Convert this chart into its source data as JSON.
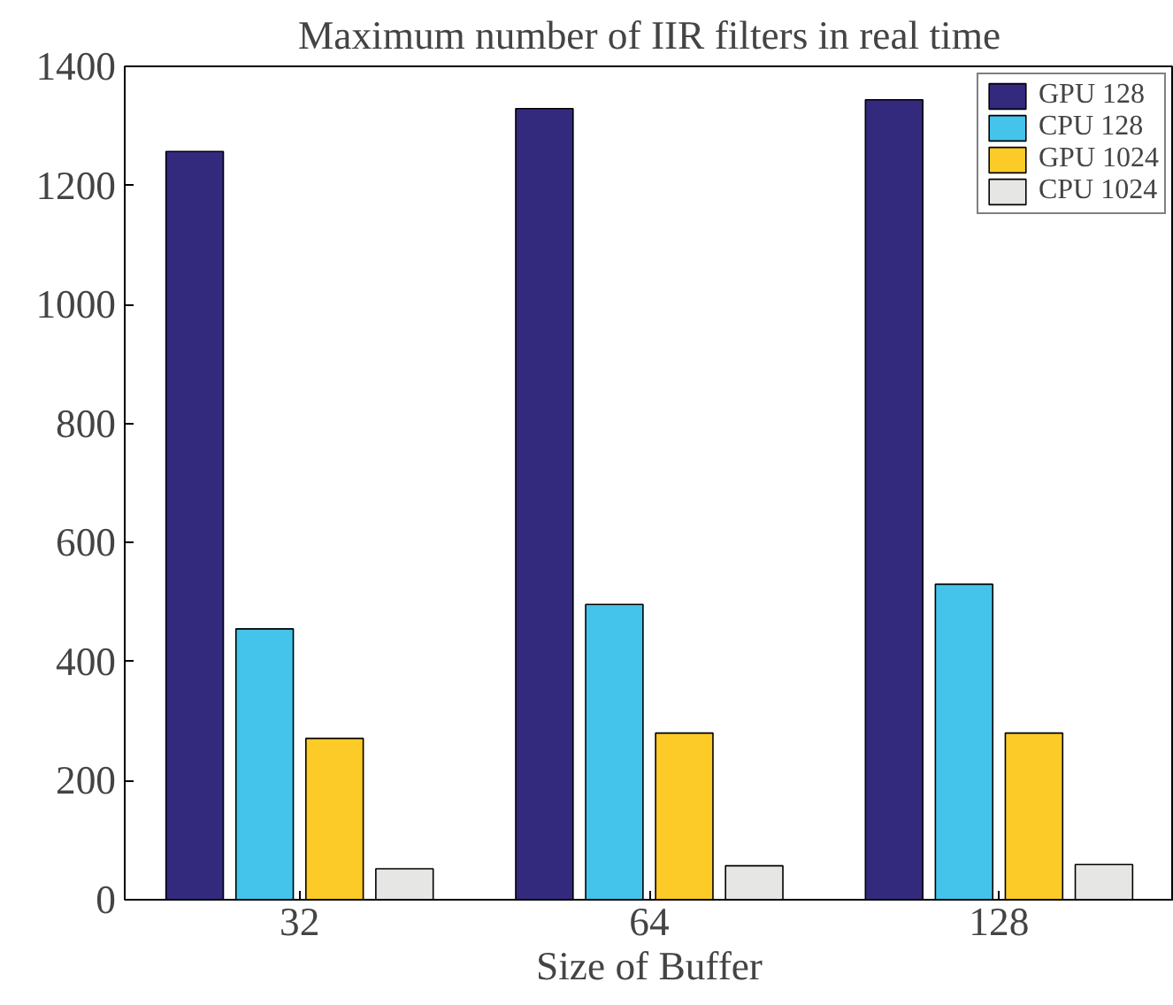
{
  "chart_data": {
    "type": "bar",
    "title": "Maximum number of IIR filters in real time",
    "xlabel": "Size of Buffer",
    "categories": [
      "32",
      "64",
      "128"
    ],
    "series": [
      {
        "name": "GPU 128",
        "color": "#332a7e",
        "values": [
          1257,
          1329,
          1344
        ]
      },
      {
        "name": "CPU 128",
        "color": "#44c4ea",
        "values": [
          455,
          496,
          530
        ]
      },
      {
        "name": "GPU 1024",
        "color": "#fdcb28",
        "values": [
          271,
          280,
          280
        ]
      },
      {
        "name": "CPU 1024",
        "color": "#e6e6e4",
        "values": [
          52,
          57,
          59
        ]
      }
    ],
    "ylim": [
      0,
      1400
    ],
    "yticks": [
      0,
      200,
      400,
      600,
      800,
      1000,
      1200,
      1400
    ],
    "grid": false,
    "legend": "top right"
  }
}
